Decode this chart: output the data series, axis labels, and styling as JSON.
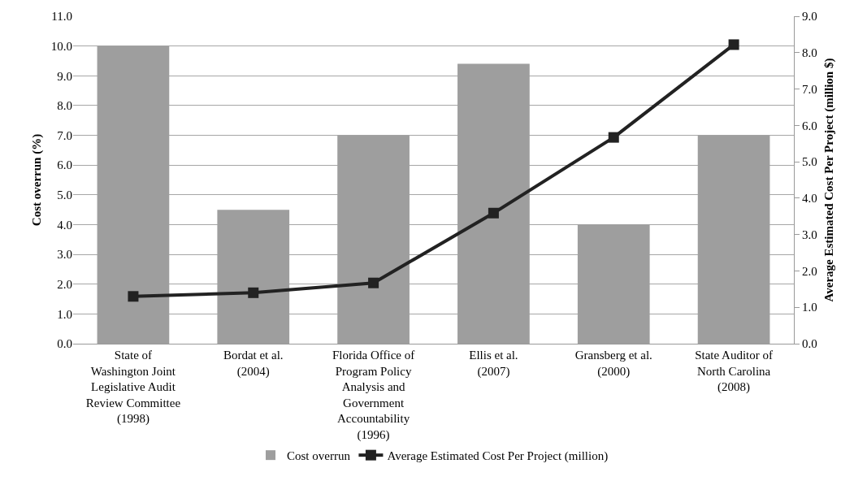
{
  "chart_data": {
    "type": "bar",
    "categories": [
      "State of Washington Joint Legislative Audit Review Committee (1998)",
      "Bordat et al. (2004)",
      "Florida Office of Program Policy Analysis and Government Accountability (1996)",
      "Ellis et al. (2007)",
      "Gransberg et al. (2000)",
      "State Auditor of North Carolina (2008)"
    ],
    "series": [
      {
        "name": "Cost overrun",
        "color": "#9e9e9e",
        "values": [
          10.0,
          4.5,
          7.0,
          9.4,
          4.0,
          7.0
        ]
      },
      {
        "name": "Average Estimated Cost Per Project (million)",
        "type": "line",
        "axis": "y2",
        "color": "#222222",
        "marker": "square",
        "values": [
          1.3,
          1.4,
          1.67,
          3.59,
          5.67,
          8.22
        ]
      }
    ],
    "ylabel": "Cost overrun (%)",
    "y2label": "Average Estimated Cost Per Project (million $)",
    "ylim": [
      0,
      11
    ],
    "yticks": [
      {
        "value": 0,
        "label": "0.0"
      },
      {
        "value": 1,
        "label": "1.0"
      },
      {
        "value": 2,
        "label": "2.0"
      },
      {
        "value": 3,
        "label": "3.0"
      },
      {
        "value": 4,
        "label": "4.0"
      },
      {
        "value": 5,
        "label": "5.0"
      },
      {
        "value": 6,
        "label": "6.0"
      },
      {
        "value": 7,
        "label": "7.0"
      },
      {
        "value": 8,
        "label": "8.0"
      },
      {
        "value": 9,
        "label": "9.0"
      },
      {
        "value": 10,
        "label": "10.0"
      },
      {
        "value": 11,
        "label": "11.0"
      }
    ],
    "y2lim": [
      0,
      9
    ],
    "y2ticks": [
      {
        "value": 0,
        "label": "0.0"
      },
      {
        "value": 1,
        "label": "1.0"
      },
      {
        "value": 2,
        "label": "2.0"
      },
      {
        "value": 3,
        "label": "3.0"
      },
      {
        "value": 4,
        "label": "4.0"
      },
      {
        "value": 5,
        "label": "5.0"
      },
      {
        "value": 6,
        "label": "6.0"
      },
      {
        "value": 7,
        "label": "7.0"
      },
      {
        "value": 8,
        "label": "8.0"
      },
      {
        "value": 9,
        "label": "9.0"
      }
    ],
    "grid": "y",
    "legend": "bottom"
  }
}
